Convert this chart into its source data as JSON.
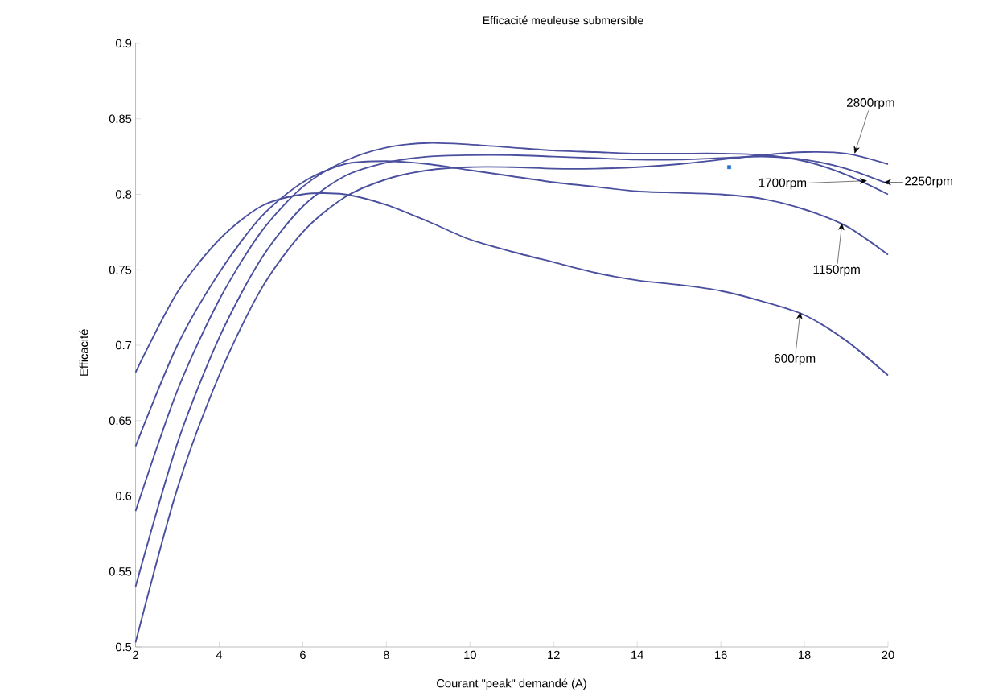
{
  "chart_data": {
    "type": "line",
    "title": "Efficacité meuleuse submersible",
    "xlabel": "Courant \"peak\" demandé (A)",
    "ylabel": "Efficacité",
    "x": [
      2,
      3,
      4,
      5,
      6,
      7,
      8,
      9,
      10,
      11,
      12,
      13,
      14,
      15,
      16,
      17,
      18,
      19,
      20
    ],
    "series": [
      {
        "color": "#4a4f9e",
        "values": [
          0.682,
          0.735,
          0.77,
          0.792,
          0.8,
          0.8,
          0.793,
          0.782,
          0.77,
          0.762,
          0.755,
          0.748,
          0.743,
          0.74,
          0.736,
          0.729,
          0.72,
          0.703,
          0.68
        ]
      },
      {
        "color": "#4a4f9e",
        "values": [
          0.633,
          0.7,
          0.748,
          0.785,
          0.808,
          0.82,
          0.822,
          0.82,
          0.816,
          0.812,
          0.808,
          0.805,
          0.802,
          0.801,
          0.8,
          0.797,
          0.79,
          0.779,
          0.76
        ]
      },
      {
        "color": "#4a4f9e",
        "values": [
          0.59,
          0.67,
          0.73,
          0.775,
          0.805,
          0.822,
          0.831,
          0.834,
          0.833,
          0.831,
          0.829,
          0.828,
          0.827,
          0.827,
          0.827,
          0.826,
          0.822,
          0.813,
          0.8
        ]
      },
      {
        "color": "#4a4f9e",
        "values": [
          0.54,
          0.635,
          0.705,
          0.757,
          0.792,
          0.812,
          0.821,
          0.825,
          0.826,
          0.826,
          0.825,
          0.824,
          0.823,
          0.823,
          0.824,
          0.825,
          0.823,
          0.817,
          0.807
        ]
      },
      {
        "color": "#4a4f9e",
        "values": [
          0.503,
          0.605,
          0.68,
          0.737,
          0.775,
          0.798,
          0.81,
          0.816,
          0.818,
          0.818,
          0.817,
          0.817,
          0.818,
          0.82,
          0.823,
          0.826,
          0.828,
          0.827,
          0.82
        ]
      },
      {
        "type": "scatter",
        "color": "#2a6fd0",
        "marker": "square",
        "x": [
          16.2
        ],
        "values": [
          0.818
        ]
      }
    ],
    "xlim": [
      2,
      20
    ],
    "ylim": [
      0.5,
      0.9
    ],
    "xticks": [
      2,
      4,
      6,
      8,
      10,
      12,
      14,
      16,
      18,
      20
    ],
    "yticks": [
      0.5,
      0.55,
      0.6,
      0.65,
      0.7,
      0.75,
      0.8,
      0.85,
      0.9
    ],
    "grid": false,
    "legend": false,
    "marker": "none",
    "line_style": "solid",
    "annotations": [
      {
        "text": "2800rpm",
        "x": 19.2,
        "y": 0.827
      },
      {
        "text": "2250rpm",
        "x": 19.9,
        "y": 0.808
      },
      {
        "text": "1700rpm",
        "x": 19.5,
        "y": 0.809
      },
      {
        "text": "1150rpm",
        "x": 18.9,
        "y": 0.781
      },
      {
        "text": "600rpm",
        "x": 17.9,
        "y": 0.722
      }
    ]
  }
}
